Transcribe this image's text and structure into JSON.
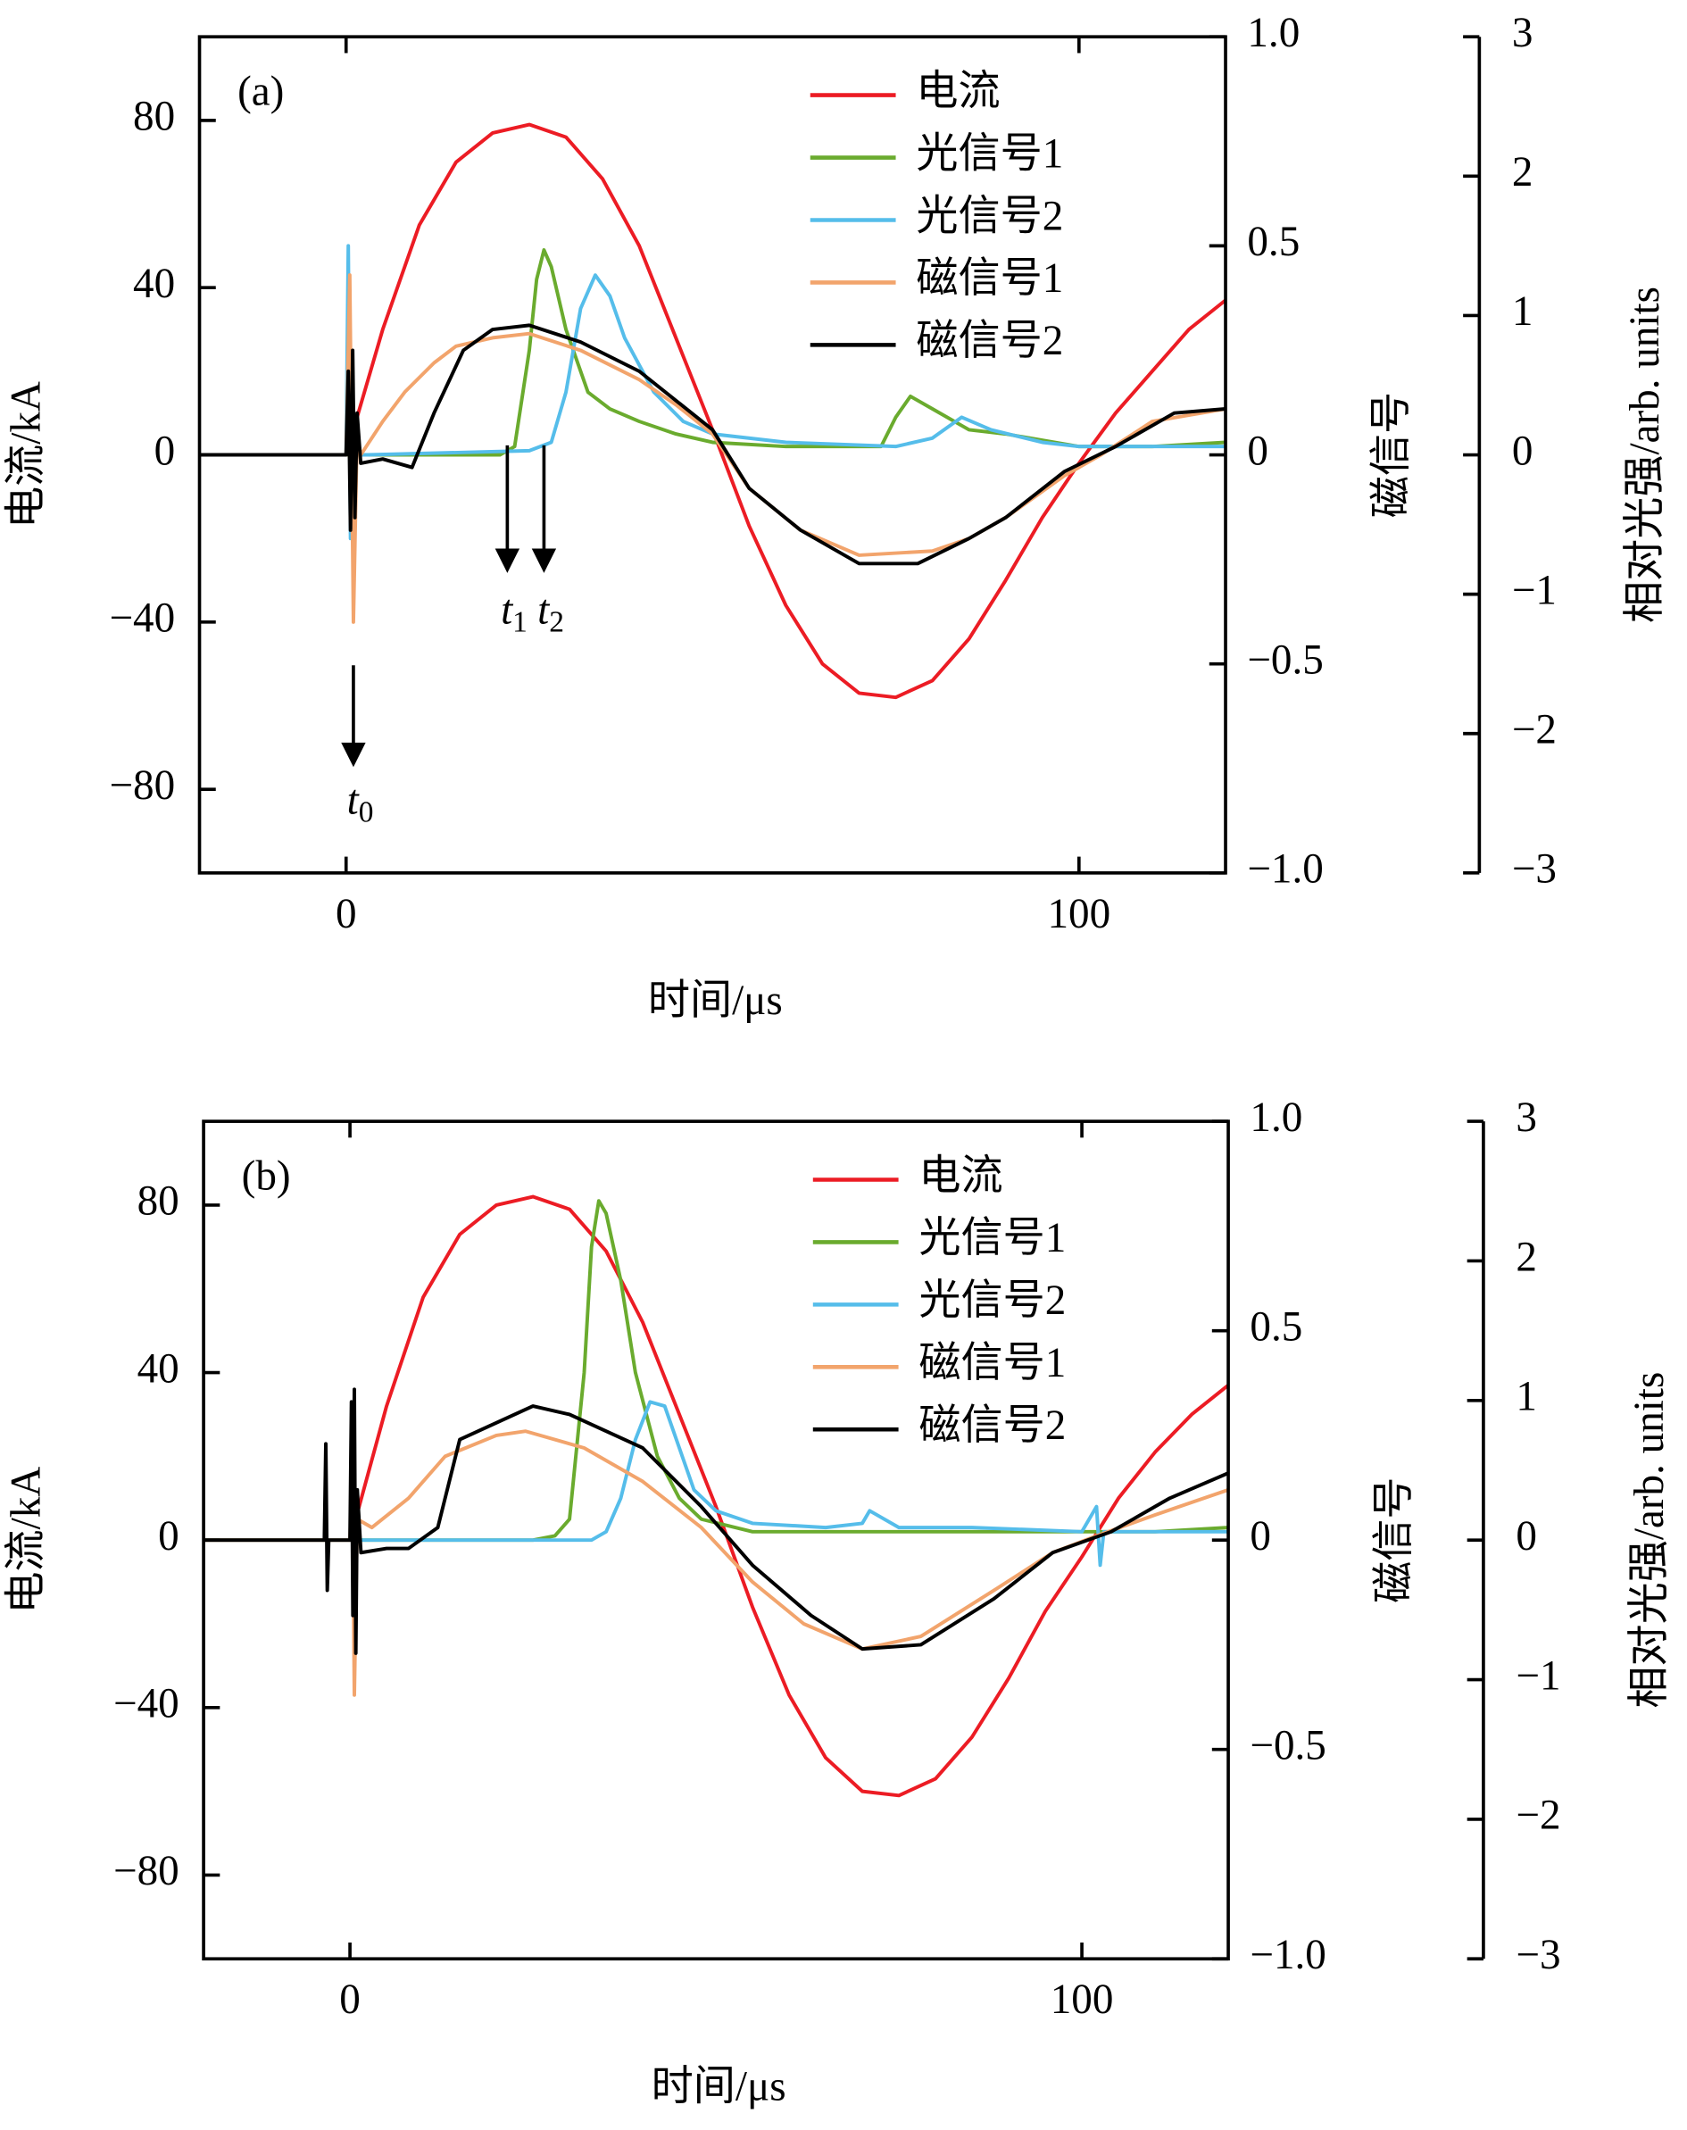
{
  "chart_data": [
    {
      "type": "line",
      "label": "(a)",
      "xlabel": "时间/μs",
      "ylabel": "电流/kA",
      "y2label": "磁信号",
      "y3label": "相对光强/arb. units",
      "xlim": [
        -20,
        120
      ],
      "xticks": [
        0,
        100
      ],
      "ylim": [
        -100,
        100
      ],
      "yticks": [
        {
          "value": -80,
          "label": "−80"
        },
        {
          "value": -40,
          "label": "−40"
        },
        0,
        40,
        80
      ],
      "y2lim": [
        -1,
        1
      ],
      "y2ticks": [
        {
          "value": -1,
          "label": "−1.0"
        },
        {
          "value": -0.5,
          "label": "−0.5"
        },
        0,
        0.5,
        {
          "value": 1,
          "label": "1.0"
        }
      ],
      "y3lim": [
        -3,
        3
      ],
      "y3ticks": [
        {
          "value": -3,
          "label": "−3"
        },
        {
          "value": -2,
          "label": "−2"
        },
        {
          "value": -1,
          "label": "−1"
        },
        0,
        1,
        2,
        3
      ],
      "legend": "upper right",
      "series": [
        {
          "name": "电流",
          "color": "#ec1c24",
          "x": [
            -20,
            0,
            5,
            10,
            15,
            20,
            25,
            30,
            35,
            40,
            45,
            50,
            55,
            60,
            65,
            70,
            75,
            80,
            85,
            90,
            95,
            100,
            105,
            110,
            115,
            120
          ],
          "values": [
            0,
            0,
            30,
            55,
            70,
            77,
            79,
            76,
            66,
            50,
            28,
            6,
            -17,
            -36,
            -50,
            -57,
            -58,
            -54,
            -44,
            -30,
            -15,
            -2,
            10,
            20,
            30,
            37
          ]
        },
        {
          "name": "光信号1",
          "color": "#6aab2e",
          "axis": "y3",
          "x": [
            -20,
            0,
            21,
            23,
            25,
            26,
            27,
            28,
            30,
            33,
            36,
            40,
            45,
            50,
            60,
            73,
            75,
            77,
            80,
            85,
            90,
            100,
            110,
            120
          ],
          "values": [
            0,
            0,
            0,
            0.06,
            0.75,
            1.26,
            1.47,
            1.35,
            0.9,
            0.45,
            0.33,
            0.24,
            0.15,
            0.09,
            0.06,
            0.06,
            0.27,
            0.42,
            0.33,
            0.18,
            0.15,
            0.06,
            0.06,
            0.09
          ]
        },
        {
          "name": "光信号2",
          "color": "#55bdea",
          "axis": "y3",
          "x": [
            -20,
            0,
            0.3,
            0.6,
            1,
            1.5,
            3,
            25,
            28,
            30,
            32,
            34,
            36,
            38,
            42,
            46,
            50,
            60,
            75,
            80,
            84,
            88,
            95,
            100,
            120
          ],
          "values": [
            0,
            0,
            1.5,
            -0.6,
            0.3,
            0,
            0,
            0.03,
            0.09,
            0.45,
            1.05,
            1.29,
            1.14,
            0.84,
            0.45,
            0.24,
            0.15,
            0.09,
            0.06,
            0.12,
            0.27,
            0.18,
            0.09,
            0.06,
            0.06
          ]
        },
        {
          "name": "磁信号1",
          "color": "#f2a46c",
          "axis": "y2",
          "x": [
            -20,
            0,
            0.5,
            1,
            1.5,
            2,
            5,
            8,
            12,
            15,
            20,
            25,
            32,
            40,
            45,
            50,
            55,
            62,
            70,
            80,
            85,
            90,
            98,
            103,
            110,
            120
          ],
          "values": [
            0,
            0,
            0.43,
            -0.4,
            0.05,
            0,
            0.08,
            0.15,
            0.22,
            0.26,
            0.28,
            0.29,
            0.25,
            0.18,
            0.12,
            0.05,
            -0.08,
            -0.18,
            -0.24,
            -0.23,
            -0.2,
            -0.15,
            -0.05,
            0,
            0.08,
            0.11
          ]
        },
        {
          "name": "磁信号2",
          "color": "#000000",
          "axis": "y2",
          "x": [
            -20,
            0,
            0.3,
            0.6,
            0.9,
            1.2,
            1.5,
            2,
            5,
            9,
            12,
            16,
            20,
            25,
            32,
            40,
            45,
            50,
            55,
            62,
            70,
            78,
            85,
            90,
            98,
            105,
            113,
            120
          ],
          "values": [
            0,
            0,
            0.2,
            -0.18,
            0.25,
            -0.15,
            0.1,
            -0.02,
            -0.01,
            -0.03,
            0.1,
            0.25,
            0.3,
            0.31,
            0.27,
            0.2,
            0.13,
            0.06,
            -0.08,
            -0.18,
            -0.26,
            -0.26,
            -0.2,
            -0.15,
            -0.04,
            0.02,
            0.1,
            0.11
          ]
        }
      ],
      "annotations": [
        {
          "text": "t",
          "sub": "0",
          "x": 1
        },
        {
          "text": "t",
          "sub": "1",
          "x": 22
        },
        {
          "text": "t",
          "sub": "2",
          "x": 27
        }
      ]
    },
    {
      "type": "line",
      "label": "(b)",
      "xlabel": "时间/μs",
      "ylabel": "电流/kA",
      "y2label": "磁信号",
      "y3label": "相对光强/arb. units",
      "xlim": [
        -20,
        120
      ],
      "xticks": [
        0,
        100
      ],
      "ylim": [
        -100,
        100
      ],
      "yticks": [
        {
          "value": -80,
          "label": "−80"
        },
        {
          "value": -40,
          "label": "−40"
        },
        0,
        40,
        80
      ],
      "y2lim": [
        -1,
        1
      ],
      "y2ticks": [
        {
          "value": -1,
          "label": "−1.0"
        },
        {
          "value": -0.5,
          "label": "−0.5"
        },
        0,
        0.5,
        {
          "value": 1,
          "label": "1.0"
        }
      ],
      "y3lim": [
        -3,
        3
      ],
      "y3ticks": [
        {
          "value": -3,
          "label": "−3"
        },
        {
          "value": -2,
          "label": "−2"
        },
        {
          "value": -1,
          "label": "−1"
        },
        0,
        1,
        2,
        3
      ],
      "legend": "upper right",
      "series": [
        {
          "name": "电流",
          "color": "#ec1c24",
          "x": [
            -20,
            0,
            5,
            10,
            15,
            20,
            25,
            30,
            35,
            40,
            45,
            50,
            55,
            60,
            65,
            70,
            75,
            80,
            85,
            90,
            95,
            100,
            105,
            110,
            115,
            120
          ],
          "values": [
            0,
            0,
            32,
            58,
            73,
            80,
            82,
            79,
            69,
            52,
            30,
            8,
            -16,
            -37,
            -52,
            -60,
            -61,
            -57,
            -47,
            -33,
            -17,
            -4,
            10,
            21,
            30,
            37
          ]
        },
        {
          "name": "光信号1",
          "color": "#6aab2e",
          "axis": "y3",
          "x": [
            -20,
            0,
            25,
            28,
            30,
            32,
            33,
            34,
            35,
            37,
            39,
            42,
            45,
            48,
            55,
            65,
            80,
            100,
            110,
            120
          ],
          "values": [
            0,
            0,
            0,
            0.03,
            0.15,
            1.2,
            2.1,
            2.43,
            2.34,
            1.86,
            1.2,
            0.6,
            0.3,
            0.15,
            0.06,
            0.06,
            0.06,
            0.06,
            0.06,
            0.09
          ]
        },
        {
          "name": "光信号2",
          "color": "#55bdea",
          "axis": "y3",
          "x": [
            -20,
            0,
            33,
            35,
            37,
            39,
            41,
            43,
            45,
            47,
            50,
            55,
            65,
            70,
            71,
            75,
            85,
            100,
            102,
            102.5,
            103,
            110,
            120
          ],
          "values": [
            0,
            0,
            0,
            0.06,
            0.3,
            0.72,
            0.99,
            0.96,
            0.66,
            0.36,
            0.21,
            0.12,
            0.09,
            0.12,
            0.21,
            0.09,
            0.09,
            0.06,
            0.24,
            -0.18,
            0.06,
            0.06,
            0.06
          ]
        },
        {
          "name": "磁信号1",
          "color": "#f2a46c",
          "axis": "y2",
          "x": [
            -20,
            0,
            0.3,
            0.6,
            1,
            3,
            8,
            13,
            20,
            24,
            32,
            40,
            48,
            55,
            62,
            70,
            78,
            88,
            96,
            102,
            110,
            120
          ],
          "values": [
            0,
            0,
            0.2,
            -0.37,
            0.05,
            0.03,
            0.1,
            0.2,
            0.25,
            0.26,
            0.22,
            0.14,
            0.03,
            -0.1,
            -0.2,
            -0.26,
            -0.23,
            -0.12,
            -0.03,
            0.01,
            0.06,
            0.12
          ]
        },
        {
          "name": "磁信号2",
          "color": "#000000",
          "axis": "y2",
          "x": [
            -20,
            -3.5,
            -3.3,
            -3.1,
            -2.9,
            0,
            0.2,
            0.4,
            0.6,
            0.8,
            1,
            1.5,
            5,
            8,
            12,
            15,
            20,
            25,
            30,
            40,
            48,
            55,
            63,
            70,
            78,
            88,
            96,
            104,
            112,
            120
          ],
          "values": [
            0,
            0,
            0.23,
            -0.12,
            0,
            0,
            0.33,
            -0.18,
            0.36,
            -0.27,
            0.12,
            -0.03,
            -0.02,
            -0.02,
            0.03,
            0.24,
            0.28,
            0.32,
            0.3,
            0.22,
            0.08,
            -0.06,
            -0.18,
            -0.26,
            -0.25,
            -0.14,
            -0.03,
            0.02,
            0.1,
            0.16
          ]
        }
      ]
    }
  ]
}
